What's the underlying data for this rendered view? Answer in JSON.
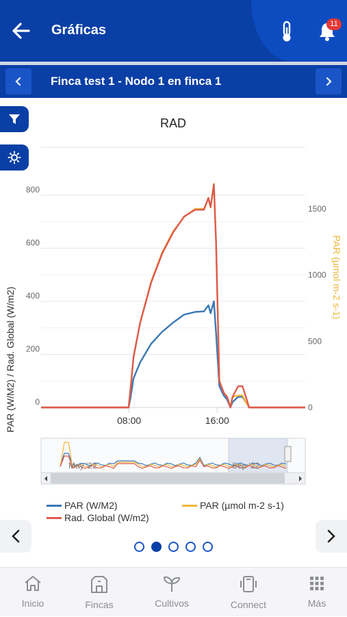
{
  "header": {
    "title": "Gráficas",
    "notification_count": "11"
  },
  "node_bar": {
    "title": "Finca test 1 - Nodo 1 en finca 1",
    "prev_label": "‹",
    "next_label": "›"
  },
  "chart_data": {
    "type": "line",
    "title": "RAD",
    "ylabel": "PAR (W/M2) / Rad. Global (W/m2)",
    "y2label": "PAR (µmol m-2 s-1)",
    "ylim": [
      0,
      800
    ],
    "y2lim": [
      0,
      1600
    ],
    "yticks": [
      "0",
      "200",
      "400",
      "600",
      "800"
    ],
    "y2ticks": [
      "0",
      "500",
      "1000",
      "1500"
    ],
    "xticks": [
      {
        "label": "08:00",
        "x": 8
      },
      {
        "label": "16:00",
        "x": 16
      }
    ],
    "xlim": [
      0,
      24
    ],
    "series": [
      {
        "name": "PAR (W/M2)",
        "color": "#3a78b5",
        "axis": "left",
        "points": [
          [
            0,
            0
          ],
          [
            7.95,
            0
          ],
          [
            8.1,
            30
          ],
          [
            8.4,
            110
          ],
          [
            9,
            170
          ],
          [
            10,
            240
          ],
          [
            11,
            285
          ],
          [
            12,
            320
          ],
          [
            13,
            350
          ],
          [
            14,
            360
          ],
          [
            14.8,
            362
          ],
          [
            15.2,
            385
          ],
          [
            15.4,
            355
          ],
          [
            15.7,
            400
          ],
          [
            15.9,
            280
          ],
          [
            16.2,
            80
          ],
          [
            16.6,
            45
          ],
          [
            16.9,
            30
          ],
          [
            17.2,
            0
          ],
          [
            17.4,
            20
          ],
          [
            17.9,
            40
          ],
          [
            18.3,
            40
          ],
          [
            18.6,
            20
          ],
          [
            18.9,
            0
          ],
          [
            24,
            0
          ]
        ]
      },
      {
        "name": "PAR (µmol m-2 s-1)",
        "color": "#f0b63a",
        "axis": "right",
        "points": [
          [
            0,
            0
          ],
          [
            7.95,
            0
          ],
          [
            8.1,
            120
          ],
          [
            8.4,
            380
          ],
          [
            9,
            640
          ],
          [
            10,
            950
          ],
          [
            11,
            1170
          ],
          [
            12,
            1330
          ],
          [
            13,
            1440
          ],
          [
            14,
            1500
          ],
          [
            14.8,
            1500
          ],
          [
            15.2,
            1580
          ],
          [
            15.4,
            1510
          ],
          [
            15.7,
            1690
          ],
          [
            15.9,
            1250
          ],
          [
            16.2,
            200
          ],
          [
            16.6,
            110
          ],
          [
            16.9,
            80
          ],
          [
            17.2,
            0
          ],
          [
            17.4,
            80
          ],
          [
            17.9,
            90
          ],
          [
            18.3,
            90
          ],
          [
            18.6,
            40
          ],
          [
            18.9,
            0
          ],
          [
            24,
            0
          ]
        ]
      },
      {
        "name": "Rad. Global (W/m2)",
        "color": "#de5a4e",
        "axis": "left",
        "points": [
          [
            0,
            0
          ],
          [
            7.95,
            0
          ],
          [
            8.1,
            60
          ],
          [
            8.4,
            190
          ],
          [
            9,
            320
          ],
          [
            10,
            470
          ],
          [
            11,
            580
          ],
          [
            12,
            660
          ],
          [
            13,
            720
          ],
          [
            14,
            745
          ],
          [
            14.8,
            745
          ],
          [
            15.2,
            790
          ],
          [
            15.4,
            755
          ],
          [
            15.7,
            840
          ],
          [
            15.9,
            620
          ],
          [
            16.2,
            100
          ],
          [
            16.6,
            55
          ],
          [
            16.9,
            40
          ],
          [
            17.2,
            0
          ],
          [
            17.4,
            40
          ],
          [
            17.9,
            80
          ],
          [
            18.3,
            80
          ],
          [
            18.6,
            40
          ],
          [
            18.9,
            0
          ],
          [
            24,
            0
          ]
        ]
      }
    ],
    "navigator": {
      "labels": [
        "May '22",
        "Sep '22"
      ]
    }
  },
  "legend": [
    {
      "label": "PAR (W/M2)",
      "color": "#3a78b5"
    },
    {
      "label": "PAR (µmol m-2 s-1)",
      "color": "#f0b63a"
    },
    {
      "label": "Rad. Global (W/m2)",
      "color": "#de5a4e"
    }
  ],
  "pager": {
    "pages": 5,
    "active": 1
  },
  "bottom_nav": [
    {
      "label": "Inicio",
      "icon": "home-icon"
    },
    {
      "label": "Fincas",
      "icon": "farm-icon"
    },
    {
      "label": "Cultivos",
      "icon": "sprout-icon"
    },
    {
      "label": "Connect",
      "icon": "device-icon"
    },
    {
      "label": "Más",
      "icon": "grid-icon"
    }
  ]
}
